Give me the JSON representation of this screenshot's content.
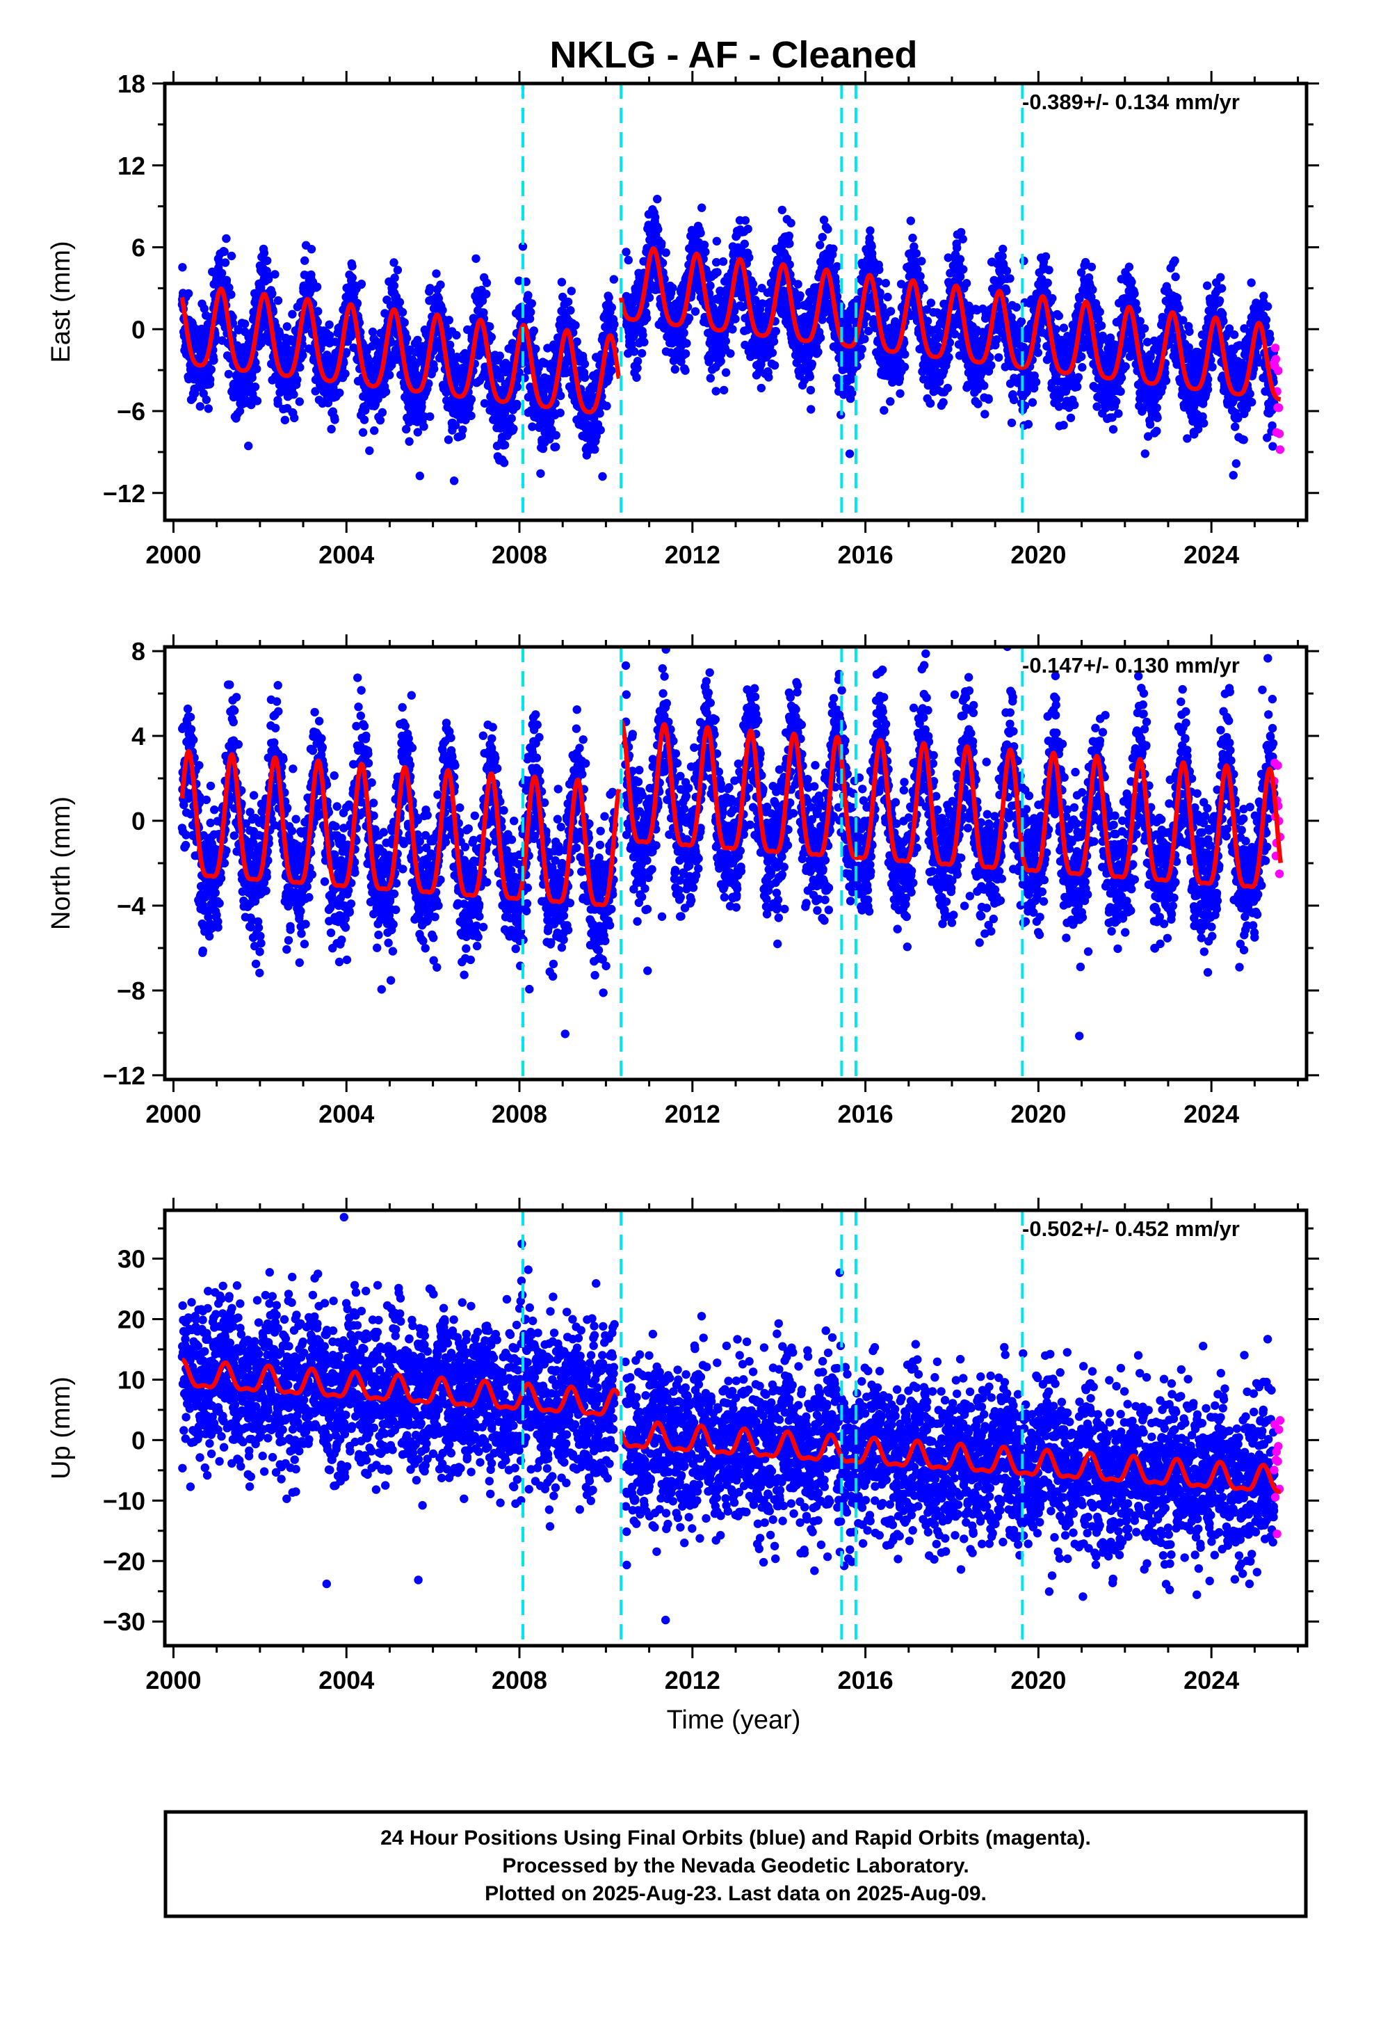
{
  "title": "NKLG  - AF - Cleaned",
  "x_axis_label": "Time (year)",
  "footer": {
    "line1": "24 Hour Positions Using Final Orbits (blue) and Rapid Orbits (magenta).",
    "line2": "Processed by the Nevada Geodetic Laboratory.",
    "line3": "Plotted on 2025-Aug-23. Last data on 2025-Aug-09."
  },
  "colors": {
    "final_orbits": "#0000ff",
    "rapid_orbits": "#ff00ff",
    "model": "#ff0000",
    "offsets": "#00e5ee"
  },
  "chart_data": [
    {
      "type": "scatter",
      "component": "East",
      "ylabel": "East (mm)",
      "xlabel": "",
      "rate_label": "-0.389+/- 0.134 mm/yr",
      "xlim": [
        1999.8,
        2026.2
      ],
      "ylim": [
        -14,
        18
      ],
      "x_ticks": [
        2000,
        2004,
        2008,
        2012,
        2016,
        2020,
        2024
      ],
      "y_ticks": [
        -12,
        -6,
        0,
        6,
        12,
        18
      ],
      "offset_lines": [
        2008.08,
        2010.35,
        2015.45,
        2015.78,
        2019.63
      ],
      "model": {
        "segments": [
          {
            "x0": 2000.2,
            "x1": 2010.3,
            "offset": -0.2,
            "trend": -0.38,
            "annual_amp": 2.9,
            "semi_amp": 0.6,
            "phase": 0.1
          },
          {
            "x0": 2010.35,
            "x1": 2025.6,
            "offset": 2.9,
            "trend": -0.39,
            "annual_amp": 2.7,
            "semi_amp": 0.6,
            "phase": 0.1
          }
        ]
      },
      "series": [
        {
          "name": "Final Orbits",
          "x_start": 2000.2,
          "x_end": 2025.45,
          "scatter_sd": 1.7
        },
        {
          "name": "Rapid Orbits",
          "x_start": 2025.45,
          "x_end": 2025.6,
          "scatter_sd": 2.0
        }
      ]
    },
    {
      "type": "scatter",
      "component": "North",
      "ylabel": "North (mm)",
      "xlabel": "",
      "rate_label": "-0.147+/- 0.130 mm/yr",
      "xlim": [
        1999.8,
        2026.2
      ],
      "ylim": [
        -12.2,
        8.2
      ],
      "x_ticks": [
        2000,
        2004,
        2008,
        2012,
        2016,
        2020,
        2024
      ],
      "y_ticks": [
        -12,
        -8,
        -4,
        0,
        4,
        8
      ],
      "offset_lines": [
        2008.08,
        2010.35,
        2015.45,
        2015.78,
        2019.63
      ],
      "model": {
        "segments": [
          {
            "x0": 2000.2,
            "x1": 2010.3,
            "offset": -0.4,
            "trend": -0.15,
            "annual_amp": 2.9,
            "semi_amp": 0.8,
            "phase": 0.35
          },
          {
            "x0": 2010.35,
            "x1": 2025.6,
            "offset": 1.1,
            "trend": -0.15,
            "annual_amp": 2.8,
            "semi_amp": 0.8,
            "phase": 0.35
          }
        ]
      },
      "series": [
        {
          "name": "Final Orbits",
          "x_start": 2000.2,
          "x_end": 2025.45,
          "scatter_sd": 1.5
        },
        {
          "name": "Rapid Orbits",
          "x_start": 2025.45,
          "x_end": 2025.6,
          "scatter_sd": 1.6
        }
      ]
    },
    {
      "type": "scatter",
      "component": "Up",
      "ylabel": "Up (mm)",
      "xlabel": "Time (year)",
      "rate_label": "-0.502+/- 0.452 mm/yr",
      "xlim": [
        1999.8,
        2026.2
      ],
      "ylim": [
        -34,
        38
      ],
      "x_ticks": [
        2000,
        2004,
        2008,
        2012,
        2016,
        2020,
        2024
      ],
      "y_ticks": [
        -30,
        -20,
        -10,
        0,
        10,
        20,
        30
      ],
      "offset_lines": [
        2008.08,
        2010.35,
        2015.45,
        2015.78,
        2019.63
      ],
      "model": {
        "segments": [
          {
            "x0": 2000.2,
            "x1": 2010.3,
            "offset": 10.5,
            "trend": -0.5,
            "annual_amp": 2.0,
            "semi_amp": 0.8,
            "phase": 0.2
          },
          {
            "x0": 2010.35,
            "x1": 2025.6,
            "offset": 0.5,
            "trend": -0.5,
            "annual_amp": 2.0,
            "semi_amp": 0.8,
            "phase": 0.2
          }
        ]
      },
      "series": [
        {
          "name": "Final Orbits",
          "x_start": 2000.2,
          "x_end": 2025.45,
          "scatter_sd": 6.5
        },
        {
          "name": "Rapid Orbits",
          "x_start": 2025.45,
          "x_end": 2025.6,
          "scatter_sd": 7.0
        }
      ]
    }
  ]
}
